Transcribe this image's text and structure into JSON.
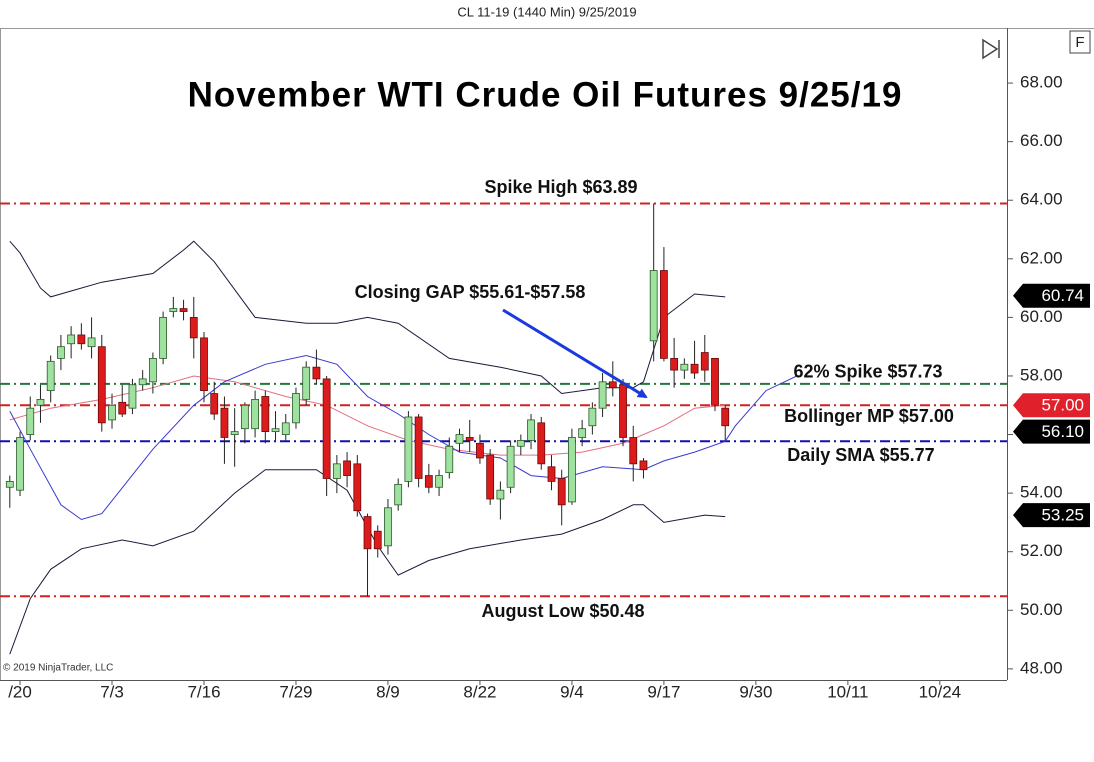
{
  "chart_data": {
    "type": "candlestick",
    "header": "CL 11-19 (1440 Min)  9/25/2019",
    "title": "November WTI Crude Oil Futures 9/25/19",
    "copyright": "© 2019 NinjaTrader, LLC",
    "xlim": [
      -0.96,
      97.57
    ],
    "ylim": [
      47.62,
      69.88
    ],
    "xticks": [
      {
        "value": 1,
        "label": "/20"
      },
      {
        "value": 10,
        "label": "7/3"
      },
      {
        "value": 19,
        "label": "7/16"
      },
      {
        "value": 28,
        "label": "7/29"
      },
      {
        "value": 37,
        "label": "8/9"
      },
      {
        "value": 46,
        "label": "8/22"
      },
      {
        "value": 55,
        "label": "9/4"
      },
      {
        "value": 64,
        "label": "9/17"
      },
      {
        "value": 73,
        "label": "9/30"
      },
      {
        "value": 82,
        "label": "10/11"
      },
      {
        "value": 91,
        "label": "10/24"
      }
    ],
    "yticks": [
      {
        "value": 48,
        "label": "48.00"
      },
      {
        "value": 50,
        "label": "50.00"
      },
      {
        "value": 52,
        "label": "52.00"
      },
      {
        "value": 54,
        "label": "54.00"
      },
      {
        "value": 56,
        "label": "56.00"
      },
      {
        "value": 58,
        "label": "58.00"
      },
      {
        "value": 60,
        "label": "60.00"
      },
      {
        "value": 62,
        "label": "62.00"
      },
      {
        "value": 64,
        "label": "64.00"
      },
      {
        "value": 66,
        "label": "66.00"
      },
      {
        "value": 68,
        "label": "68.00"
      }
    ],
    "up_color": "#9fe29f",
    "down_color": "#dc1c1c",
    "open": [
      54.2,
      54.1,
      56.0,
      57.0,
      57.5,
      58.6,
      59.1,
      59.4,
      59.0,
      59.0,
      56.5,
      57.1,
      56.9,
      57.7,
      57.8,
      58.6,
      60.2,
      60.3,
      60.0,
      59.3,
      57.4,
      56.9,
      56.0,
      56.2,
      56.2,
      57.3,
      56.1,
      56.0,
      56.4,
      57.2,
      58.3,
      57.9,
      54.5,
      55.1,
      55.0,
      53.2,
      52.7,
      52.2,
      53.6,
      54.4,
      56.6,
      54.6,
      54.2,
      54.7,
      55.7,
      55.9,
      55.7,
      55.3,
      53.8,
      54.2,
      55.6,
      55.8,
      56.4,
      54.9,
      54.5,
      53.7,
      55.9,
      56.3,
      56.9,
      57.8,
      57.7,
      55.9,
      55.1,
      59.2,
      61.6,
      58.6,
      58.2,
      58.4,
      58.8,
      58.6,
      56.9
    ],
    "high": [
      54.6,
      56.1,
      57.3,
      57.7,
      58.7,
      59.4,
      59.7,
      59.8,
      60.0,
      59.4,
      57.4,
      57.7,
      57.9,
      58.2,
      58.8,
      60.2,
      60.7,
      60.6,
      60.7,
      59.5,
      57.8,
      57.3,
      56.9,
      57.1,
      57.5,
      57.5,
      56.8,
      56.7,
      57.6,
      58.5,
      58.9,
      58.0,
      55.3,
      55.4,
      55.3,
      53.3,
      52.9,
      53.8,
      54.5,
      56.8,
      56.7,
      55.0,
      54.8,
      55.9,
      56.2,
      56.5,
      56.0,
      55.5,
      54.4,
      55.8,
      56.0,
      56.7,
      56.6,
      55.3,
      54.8,
      56.2,
      56.5,
      57.1,
      58.1,
      58.5,
      57.9,
      56.3,
      55.2,
      63.89,
      62.4,
      59.3,
      58.6,
      59.2,
      59.4,
      58.6,
      57.0
    ],
    "low": [
      53.5,
      53.9,
      55.8,
      56.4,
      57.1,
      58.2,
      58.6,
      58.9,
      58.6,
      56.1,
      56.2,
      56.6,
      56.7,
      57.5,
      57.4,
      58.4,
      60.0,
      59.9,
      58.6,
      57.1,
      56.5,
      55.0,
      54.9,
      55.7,
      55.9,
      55.7,
      55.8,
      55.8,
      56.2,
      57.0,
      57.7,
      53.9,
      54.0,
      54.2,
      53.2,
      50.48,
      51.8,
      51.9,
      53.4,
      54.2,
      54.2,
      54.0,
      53.9,
      54.5,
      55.4,
      55.4,
      55.0,
      53.6,
      53.1,
      54.0,
      55.3,
      55.5,
      54.8,
      54.1,
      52.9,
      53.6,
      55.6,
      56.0,
      56.6,
      57.3,
      55.6,
      54.4,
      54.5,
      58.5,
      58.5,
      57.6,
      57.9,
      57.9,
      57.8,
      56.8,
      55.8
    ],
    "close": [
      54.4,
      55.9,
      56.9,
      57.2,
      58.5,
      59.0,
      59.4,
      59.1,
      59.3,
      56.4,
      57.0,
      56.7,
      57.7,
      57.9,
      58.6,
      60.0,
      60.3,
      60.2,
      59.3,
      57.5,
      56.7,
      55.9,
      56.1,
      57.0,
      57.2,
      56.1,
      56.2,
      56.4,
      57.4,
      58.3,
      57.9,
      54.5,
      55.0,
      54.6,
      53.4,
      52.1,
      52.1,
      53.5,
      54.3,
      56.6,
      54.5,
      54.2,
      54.6,
      55.6,
      56.0,
      55.8,
      55.2,
      53.8,
      54.1,
      55.6,
      55.8,
      56.5,
      55.0,
      54.4,
      53.6,
      55.9,
      56.2,
      56.9,
      57.8,
      57.6,
      55.9,
      55.0,
      54.8,
      61.6,
      58.6,
      58.2,
      58.4,
      58.1,
      58.2,
      57.0,
      56.3
    ],
    "overlays": [
      {
        "color": "#1a1a3a",
        "x": [
          0,
          1,
          3,
          4,
          6,
          9,
          14,
          17,
          18,
          20,
          24,
          29,
          32,
          35,
          38,
          43,
          48,
          52,
          54,
          58,
          61,
          62,
          64,
          67,
          70
        ],
        "values": [
          62.6,
          62.2,
          61.0,
          60.7,
          60.9,
          61.2,
          61.5,
          62.3,
          62.6,
          61.9,
          60.0,
          59.8,
          59.8,
          60.0,
          59.8,
          58.6,
          58.3,
          58.0,
          57.4,
          57.6,
          57.6,
          57.8,
          60.0,
          60.8,
          60.7
        ]
      },
      {
        "color": "#1a1a3a",
        "x": [
          0,
          2,
          4,
          7,
          11,
          14,
          18,
          22,
          25,
          30,
          33,
          36,
          38,
          41,
          45,
          50,
          54,
          58,
          61,
          62,
          64,
          68,
          70
        ],
        "values": [
          48.5,
          50.4,
          51.4,
          52.1,
          52.4,
          52.2,
          52.7,
          54.0,
          54.8,
          54.8,
          54.1,
          52.2,
          51.2,
          51.7,
          52.1,
          52.4,
          52.6,
          53.1,
          53.6,
          53.6,
          53.0,
          53.25,
          53.2
        ]
      },
      {
        "color": "#e07080",
        "x": [
          0,
          4,
          9,
          14,
          18,
          22,
          27,
          31,
          35,
          39,
          43,
          48,
          52,
          56,
          60,
          62,
          64,
          67,
          70
        ],
        "values": [
          56.5,
          56.9,
          57.2,
          57.6,
          58.0,
          57.8,
          57.3,
          57.0,
          56.3,
          55.8,
          55.5,
          55.3,
          55.3,
          55.4,
          55.7,
          56.0,
          56.3,
          56.9,
          57.0
        ]
      },
      {
        "color": "#3a3ad0",
        "x": [
          0,
          2,
          5,
          7,
          9,
          14,
          18,
          21,
          25,
          29,
          32,
          35,
          38,
          41,
          44,
          48,
          51,
          54,
          58,
          62,
          64,
          67,
          70,
          71,
          74,
          77
        ],
        "values": [
          56.8,
          55.5,
          53.6,
          53.1,
          53.3,
          55.5,
          57.0,
          57.8,
          58.4,
          58.7,
          58.4,
          57.3,
          56.7,
          56.0,
          55.4,
          55.2,
          54.6,
          54.5,
          54.9,
          54.8,
          55.1,
          55.4,
          55.77,
          56.3,
          57.5,
          58.0
        ]
      }
    ],
    "levels": [
      {
        "value": 63.89,
        "label": "Spike High $63.89",
        "color": "#d42020"
      },
      {
        "value": 57.73,
        "label": "62% Spike $57.73",
        "color": "#1f7a3a"
      },
      {
        "value": 57.0,
        "label": "Bollinger MP $57.00",
        "color": "#d42020"
      },
      {
        "value": 55.77,
        "label": "Daily SMA $55.77",
        "color": "#1010b0"
      },
      {
        "value": 50.48,
        "label": "August Low $50.48",
        "color": "#d42020"
      }
    ],
    "annotation": "Closing GAP $55.61-$57.58",
    "price_tags": [
      {
        "value": 60.74,
        "label": "60.74",
        "color": "#000000"
      },
      {
        "value": 57.0,
        "label": "57.00",
        "color": "#e0202a"
      },
      {
        "value": 56.1,
        "label": "56.10",
        "color": "#000000"
      },
      {
        "value": 53.25,
        "label": "53.25",
        "color": "#000000"
      }
    ]
  }
}
